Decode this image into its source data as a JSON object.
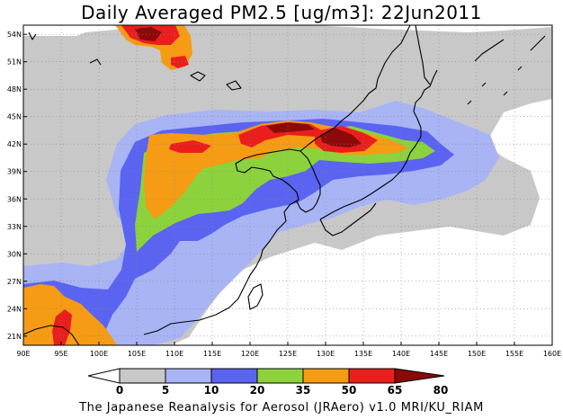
{
  "title": "Daily Averaged PM2.5 [ug/m3]: 22Jun2011",
  "credit": "The Japanese Reanalysis for Aerosol (JRAero) v1.0 MRI/KU_RIAM",
  "map": {
    "lon_range": [
      90,
      160
    ],
    "lat_range": [
      20,
      55
    ],
    "lon_ticks": [
      "90E",
      "95E",
      "100E",
      "105E",
      "110E",
      "115E",
      "120E",
      "125E",
      "130E",
      "135E",
      "140E",
      "145E",
      "150E",
      "155E",
      "160E"
    ],
    "lat_ticks": [
      "21N",
      "24N",
      "27N",
      "30N",
      "33N",
      "36N",
      "39N",
      "42N",
      "45N",
      "48N",
      "51N",
      "54N"
    ],
    "grid": "dotted"
  },
  "colorbar": {
    "labels": [
      "0",
      "5",
      "10",
      "20",
      "35",
      "50",
      "65",
      "80"
    ],
    "colors": [
      "#ffffff",
      "#c8c8c8",
      "#a8b4f4",
      "#5a64f0",
      "#8cd23c",
      "#f59b14",
      "#eb1e1e",
      "#8c0a0a"
    ]
  }
}
